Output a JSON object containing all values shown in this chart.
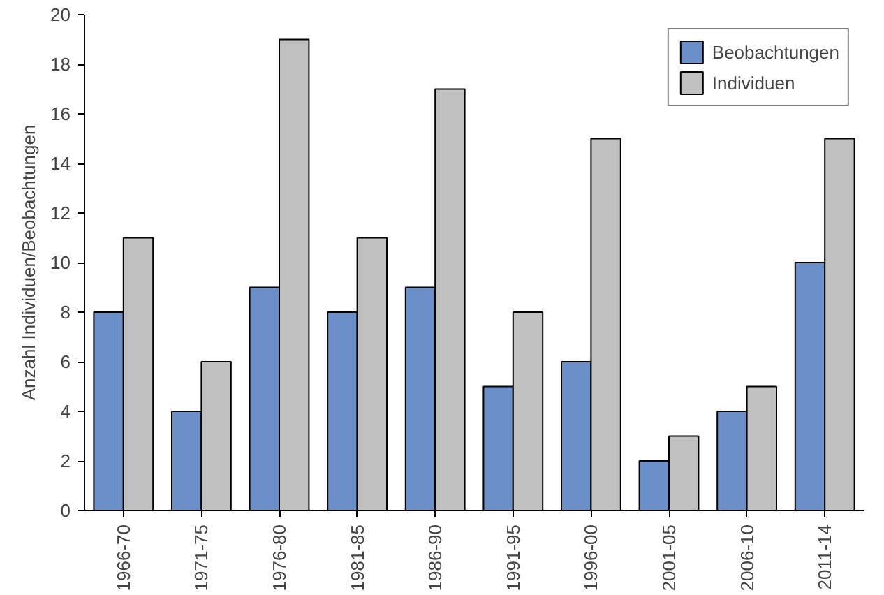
{
  "chart_data": {
    "type": "bar",
    "ylabel": "Anzahl Individuen/Beobachtungen",
    "categories": [
      "1966-70",
      "1971-75",
      "1976-80",
      "1981-85",
      "1986-90",
      "1991-95",
      "1996-00",
      "2001-05",
      "2006-10",
      "2011-14"
    ],
    "series": [
      {
        "name": "Beobachtungen",
        "color": "#6b8fc8",
        "values": [
          8,
          4,
          9,
          8,
          9,
          5,
          6,
          2,
          4,
          10
        ]
      },
      {
        "name": "Individuen",
        "color": "#c0c0c0",
        "values": [
          11,
          6,
          19,
          11,
          17,
          8,
          15,
          3,
          5,
          15
        ]
      }
    ],
    "ylim": [
      0,
      20
    ],
    "yticks": [
      0,
      2,
      4,
      6,
      8,
      10,
      12,
      14,
      16,
      18,
      20
    ],
    "grid": false,
    "legend": "top right"
  }
}
